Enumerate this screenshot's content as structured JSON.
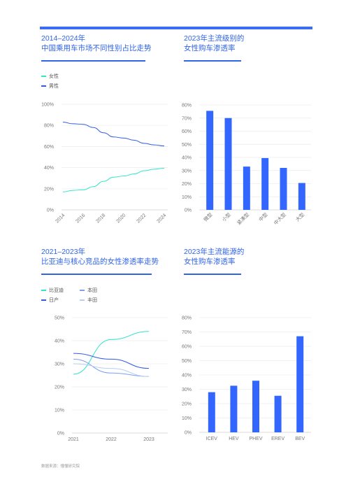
{
  "colors": {
    "accent": "#2f63e8",
    "bar": "#3366ff",
    "line_teal": "#2ee6c8",
    "line_blue": "#2f5be6",
    "line_lightblue": "#7fa0f0",
    "line_pale": "#b9cdf2"
  },
  "source": "数据来源：懂懂研究院",
  "chart_data": [
    {
      "type": "line",
      "title": "2014–2024年\n中国乘用车市场不同性别占比走势",
      "x": [
        2014,
        2015,
        2016,
        2017,
        2018,
        2019,
        2020,
        2021,
        2022,
        2023,
        2024
      ],
      "xticks": [
        "2014",
        "2016",
        "2018",
        "2020",
        "2022",
        "2024"
      ],
      "ylim": [
        0,
        100
      ],
      "yticks": [
        "0%",
        "20%",
        "40%",
        "60%",
        "80%",
        "100%"
      ],
      "legend_position": "top-left",
      "series": [
        {
          "name": "女性",
          "color": "#2ee6c8",
          "values": [
            17,
            18.5,
            19,
            22,
            27,
            31,
            32,
            34,
            37,
            38.5,
            39.5
          ]
        },
        {
          "name": "男性",
          "color": "#2f5be6",
          "values": [
            83,
            81.5,
            81,
            78,
            73,
            69,
            68,
            66,
            63,
            61.5,
            60.5
          ]
        }
      ]
    },
    {
      "type": "bar",
      "title": "2023年主流级别的\n女性购车渗透率",
      "categories": [
        "微型",
        "小型",
        "紧凑型",
        "中型",
        "中大型",
        "大型"
      ],
      "values": [
        75.5,
        70,
        33,
        39.5,
        32,
        20.5
      ],
      "ylim": [
        0,
        80
      ],
      "yticks": [
        "0%",
        "10%",
        "20%",
        "30%",
        "40%",
        "50%",
        "60%",
        "70%",
        "80%"
      ]
    },
    {
      "type": "line",
      "title": "2021–2023年\n比亚迪与核心竞品的女性渗透率走势",
      "x": [
        2021,
        2022,
        2023
      ],
      "xticks": [
        "2021",
        "2022",
        "2023"
      ],
      "ylim": [
        0,
        50
      ],
      "yticks": [
        "0%",
        "10%",
        "20%",
        "30%",
        "40%",
        "50%"
      ],
      "legend_position": "top-left",
      "series": [
        {
          "name": "比亚迪",
          "color": "#2ee6c8",
          "values": [
            25.5,
            40.5,
            44
          ]
        },
        {
          "name": "本田",
          "color": "#7fa0f0",
          "values": [
            32,
            26,
            24.5
          ]
        },
        {
          "name": "日产",
          "color": "#2f5be6",
          "values": [
            34.5,
            32,
            28
          ]
        },
        {
          "name": "丰田",
          "color": "#b9cdf2",
          "values": [
            30,
            28,
            24.5
          ]
        }
      ]
    },
    {
      "type": "bar",
      "title": "2023年主流能源的\n女性购车渗透率",
      "categories": [
        "ICEV",
        "HEV",
        "PHEV",
        "EREV",
        "BEV"
      ],
      "values": [
        28,
        32.5,
        36,
        25.5,
        67
      ],
      "ylim": [
        0,
        80
      ],
      "yticks": [
        "0%",
        "10%",
        "20%",
        "30%",
        "40%",
        "50%",
        "60%",
        "70%",
        "80%"
      ]
    }
  ]
}
